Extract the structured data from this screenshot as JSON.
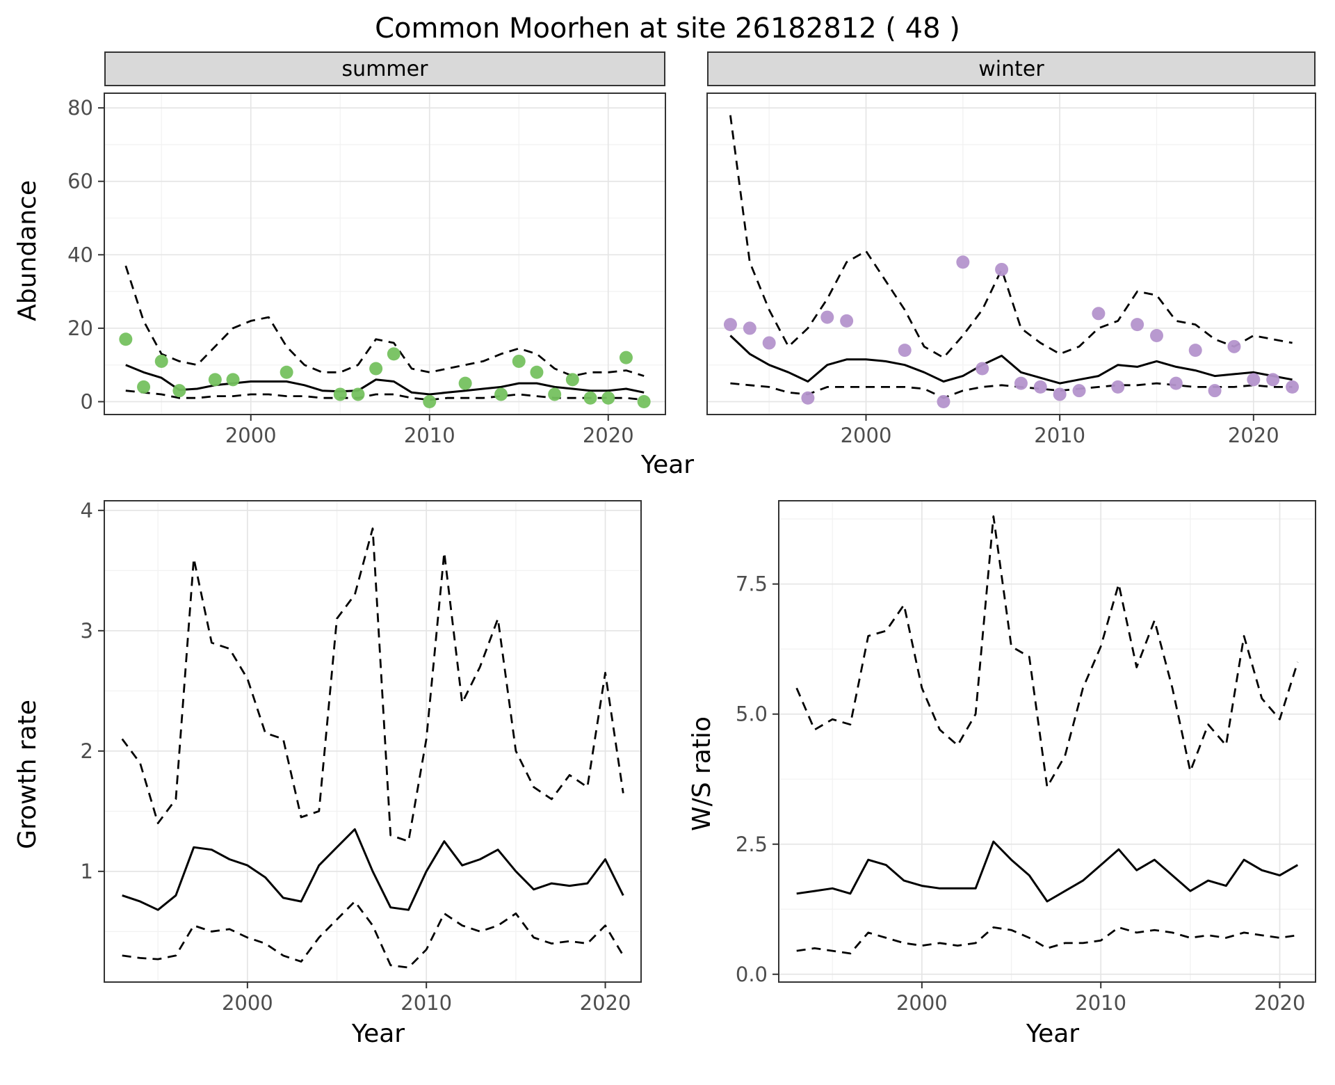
{
  "title": "Common Moorhen at site 26182812 ( 48 )",
  "labels": {
    "abundance": "Abundance",
    "year_top": "Year",
    "growth": "Growth rate",
    "ws": "W/S ratio",
    "year_growth": "Year",
    "year_ws": "Year"
  },
  "colors": {
    "summer_points": "#75c15f",
    "winter_points": "#b494cc",
    "line": "#000000",
    "strip_bg": "#d9d9d9",
    "grid_major": "#e5e5e5",
    "grid_minor": "#f2f2f2",
    "tick_text": "#4d4d4d",
    "panel_border": "#333333"
  },
  "chart_data": [
    {
      "type": "line",
      "panel": "abundance-summer",
      "title": "summer",
      "xlim": [
        1991.8,
        2023.2
      ],
      "ylim": [
        -3.5,
        84
      ],
      "xticks": [
        2000,
        2010,
        2020
      ],
      "xtick_labels": [
        "2000",
        "2010",
        "2020"
      ],
      "yticks": [
        0,
        20,
        40,
        60,
        80
      ],
      "ytick_labels": [
        "0",
        "20",
        "40",
        "60",
        "80"
      ],
      "show_y_ticks": true,
      "series": [
        {
          "name": "upper-ci",
          "style": "dashed",
          "color": "#000000",
          "x0": 1993,
          "y": [
            37,
            22,
            13,
            11,
            10,
            15,
            20,
            22,
            23,
            15,
            10,
            8,
            8,
            10,
            17,
            16,
            9,
            8,
            9,
            10,
            11,
            13,
            14.5,
            13,
            9,
            7,
            8,
            8,
            8.5,
            7
          ]
        },
        {
          "name": "lower-ci",
          "style": "dashed",
          "color": "#000000",
          "x0": 1993,
          "y": [
            3,
            2.5,
            2,
            1,
            1,
            1.5,
            1.5,
            2,
            2,
            1.5,
            1.5,
            1,
            1,
            1,
            2,
            2,
            1,
            0.5,
            1,
            1,
            1,
            1.5,
            2,
            1.5,
            1,
            1,
            1,
            1,
            1,
            0.5
          ]
        },
        {
          "name": "fitted",
          "style": "solid",
          "color": "#000000",
          "x0": 1993,
          "y": [
            10,
            8,
            6.5,
            3.2,
            3.5,
            4.5,
            5,
            5.5,
            5.5,
            5.5,
            4.5,
            3,
            2.8,
            3,
            6,
            5.5,
            2.5,
            2,
            2.5,
            3,
            3.5,
            4,
            5,
            5,
            4,
            3.5,
            3,
            3,
            3.5,
            2.5
          ]
        },
        {
          "name": "observed-counts",
          "style": "points",
          "color": "#75c15f",
          "x": [
            1993,
            1994,
            1995,
            1996,
            1998,
            1999,
            2002,
            2005,
            2006,
            2007,
            2008,
            2010,
            2012,
            2014,
            2015,
            2016,
            2017,
            2018,
            2019,
            2020,
            2021,
            2022
          ],
          "y": [
            17,
            4,
            11,
            3,
            6,
            6,
            8,
            2,
            2,
            9,
            13,
            0,
            5,
            2,
            11,
            8,
            2,
            6,
            1,
            1,
            12,
            0
          ]
        }
      ]
    },
    {
      "type": "line",
      "panel": "abundance-winter",
      "title": "winter",
      "xlim": [
        1991.8,
        2023.2
      ],
      "ylim": [
        -3.5,
        84
      ],
      "xticks": [
        2000,
        2010,
        2020
      ],
      "xtick_labels": [
        "2000",
        "2010",
        "2020"
      ],
      "yticks": [
        0,
        20,
        40,
        60,
        80
      ],
      "ytick_labels": [
        "0",
        "20",
        "40",
        "60",
        "80"
      ],
      "show_y_ticks": false,
      "series": [
        {
          "name": "upper-ci",
          "style": "dashed",
          "color": "#000000",
          "x0": 1993,
          "y": [
            78,
            38,
            25,
            15,
            20,
            28,
            38,
            41,
            33,
            25,
            15,
            12,
            18,
            25,
            36,
            20,
            16,
            13,
            15,
            20,
            22,
            30,
            29,
            22,
            21,
            17,
            15,
            18,
            17,
            16
          ]
        },
        {
          "name": "lower-ci",
          "style": "dashed",
          "color": "#000000",
          "x0": 1993,
          "y": [
            5,
            4.5,
            4,
            2.5,
            2,
            4,
            4,
            4,
            4,
            4,
            3.5,
            1,
            3,
            4,
            4.5,
            4,
            3.5,
            3,
            3.5,
            4,
            4.5,
            4.5,
            5,
            4.5,
            4,
            4,
            4,
            4.5,
            4,
            4
          ]
        },
        {
          "name": "fitted",
          "style": "solid",
          "color": "#000000",
          "x0": 1993,
          "y": [
            18,
            13,
            10,
            8,
            5.5,
            10,
            11.5,
            11.5,
            11,
            10,
            8,
            5.5,
            7,
            10,
            12.5,
            8,
            6.5,
            5,
            6,
            7,
            10,
            9.5,
            11,
            9.5,
            8.5,
            7,
            7.5,
            8,
            7,
            6
          ]
        },
        {
          "name": "observed-counts",
          "style": "points",
          "color": "#b494cc",
          "x": [
            1993,
            1994,
            1995,
            1997,
            1998,
            1999,
            2002,
            2004,
            2005,
            2006,
            2007,
            2008,
            2009,
            2010,
            2011,
            2012,
            2013,
            2014,
            2015,
            2016,
            2017,
            2018,
            2019,
            2020,
            2021,
            2022
          ],
          "y": [
            21,
            20,
            16,
            1,
            23,
            22,
            14,
            0,
            38,
            9,
            36,
            5,
            4,
            2,
            3,
            24,
            4,
            21,
            18,
            5,
            14,
            3,
            15,
            6,
            6,
            4
          ]
        }
      ]
    },
    {
      "type": "line",
      "panel": "growth-rate",
      "title": "Growth rate",
      "xlim": [
        1992,
        2022
      ],
      "ylim": [
        0.08,
        4.08
      ],
      "xticks": [
        2000,
        2010,
        2020
      ],
      "xtick_labels": [
        "2000",
        "2010",
        "2020"
      ],
      "yticks": [
        1,
        2,
        3,
        4
      ],
      "ytick_labels": [
        "1",
        "2",
        "3",
        "4"
      ],
      "show_y_ticks": true,
      "series": [
        {
          "name": "upper-ci",
          "style": "dashed",
          "color": "#000000",
          "x0": 1993,
          "y": [
            2.1,
            1.9,
            1.4,
            1.6,
            3.6,
            2.9,
            2.85,
            2.6,
            2.15,
            2.1,
            1.45,
            1.5,
            3.1,
            3.3,
            3.85,
            1.3,
            1.25,
            2.1,
            3.65,
            2.4,
            2.7,
            3.1,
            2.0,
            1.7,
            1.6,
            1.8,
            1.7,
            2.65,
            1.65
          ]
        },
        {
          "name": "lower-ci",
          "style": "dashed",
          "color": "#000000",
          "x0": 1993,
          "y": [
            0.3,
            0.28,
            0.27,
            0.3,
            0.55,
            0.5,
            0.52,
            0.45,
            0.4,
            0.3,
            0.25,
            0.45,
            0.6,
            0.75,
            0.55,
            0.22,
            0.2,
            0.35,
            0.65,
            0.55,
            0.5,
            0.55,
            0.65,
            0.45,
            0.4,
            0.42,
            0.4,
            0.55,
            0.3
          ]
        },
        {
          "name": "fitted",
          "style": "solid",
          "color": "#000000",
          "x0": 1993,
          "y": [
            0.8,
            0.75,
            0.68,
            0.8,
            1.2,
            1.18,
            1.1,
            1.05,
            0.95,
            0.78,
            0.75,
            1.05,
            1.2,
            1.35,
            1.0,
            0.7,
            0.68,
            1.0,
            1.25,
            1.05,
            1.1,
            1.18,
            1.0,
            0.85,
            0.9,
            0.88,
            0.9,
            1.1,
            0.8
          ]
        }
      ]
    },
    {
      "type": "line",
      "panel": "ws-ratio",
      "title": "W/S ratio",
      "xlim": [
        1992,
        2022
      ],
      "ylim": [
        -0.15,
        9.1
      ],
      "xticks": [
        2000,
        2010,
        2020
      ],
      "xtick_labels": [
        "2000",
        "2010",
        "2020"
      ],
      "yticks": [
        0,
        2.5,
        5,
        7.5
      ],
      "ytick_labels": [
        "0.0",
        "2.5",
        "5.0",
        "7.5"
      ],
      "show_y_ticks": true,
      "series": [
        {
          "name": "upper-ci",
          "style": "dashed",
          "color": "#000000",
          "x0": 1993,
          "y": [
            5.5,
            4.7,
            4.9,
            4.8,
            6.5,
            6.6,
            7.1,
            5.5,
            4.7,
            4.4,
            5.0,
            8.8,
            6.3,
            6.1,
            3.6,
            4.2,
            5.5,
            6.3,
            7.5,
            5.9,
            6.8,
            5.5,
            3.9,
            4.8,
            4.4,
            6.5,
            5.3,
            4.9,
            6.0
          ]
        },
        {
          "name": "lower-ci",
          "style": "dashed",
          "color": "#000000",
          "x0": 1993,
          "y": [
            0.45,
            0.5,
            0.45,
            0.4,
            0.8,
            0.7,
            0.6,
            0.55,
            0.6,
            0.55,
            0.6,
            0.9,
            0.85,
            0.7,
            0.5,
            0.6,
            0.6,
            0.65,
            0.9,
            0.8,
            0.85,
            0.8,
            0.7,
            0.75,
            0.7,
            0.8,
            0.75,
            0.7,
            0.75
          ]
        },
        {
          "name": "fitted",
          "style": "solid",
          "color": "#000000",
          "x0": 1993,
          "y": [
            1.55,
            1.6,
            1.65,
            1.55,
            2.2,
            2.1,
            1.8,
            1.7,
            1.65,
            1.65,
            1.65,
            2.55,
            2.2,
            1.9,
            1.4,
            1.6,
            1.8,
            2.1,
            2.4,
            2.0,
            2.2,
            1.9,
            1.6,
            1.8,
            1.7,
            2.2,
            2.0,
            1.9,
            2.1
          ]
        }
      ]
    }
  ]
}
